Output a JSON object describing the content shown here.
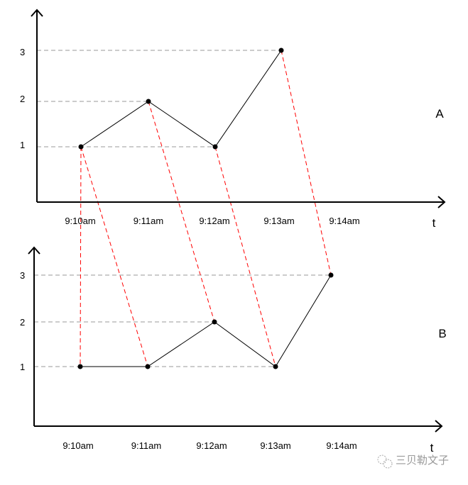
{
  "colors": {
    "axis": "#000000",
    "line": "#000000",
    "grid": "#999999",
    "link": "#ff0000",
    "watermark": "#9a9a9a"
  },
  "chart_data": [
    {
      "type": "line",
      "label": "A",
      "xlabel": "t",
      "x_ticks": [
        "9:10am",
        "9:11am",
        "9:12am",
        "9:13am",
        "9:14am"
      ],
      "y_ticks": [
        "1",
        "2",
        "3"
      ],
      "x": [
        "9:10am",
        "9:11am",
        "9:12am",
        "9:13am"
      ],
      "values": [
        1,
        2,
        1,
        3
      ]
    },
    {
      "type": "line",
      "label": "B",
      "xlabel": "t",
      "x_ticks": [
        "9:10am",
        "9:11am",
        "9:12am",
        "9:13am",
        "9:14am"
      ],
      "y_ticks": [
        "1",
        "2",
        "3"
      ],
      "x": [
        "9:10am",
        "9:11am",
        "9:12am",
        "9:13am",
        "9:14am"
      ],
      "values": [
        1,
        1,
        2,
        1,
        3
      ]
    }
  ],
  "links": [
    [
      0,
      0
    ],
    [
      0,
      1
    ],
    [
      1,
      2
    ],
    [
      2,
      3
    ],
    [
      3,
      4
    ]
  ],
  "watermark": {
    "icon": "wechat-icon",
    "text": "三贝勒文子"
  }
}
